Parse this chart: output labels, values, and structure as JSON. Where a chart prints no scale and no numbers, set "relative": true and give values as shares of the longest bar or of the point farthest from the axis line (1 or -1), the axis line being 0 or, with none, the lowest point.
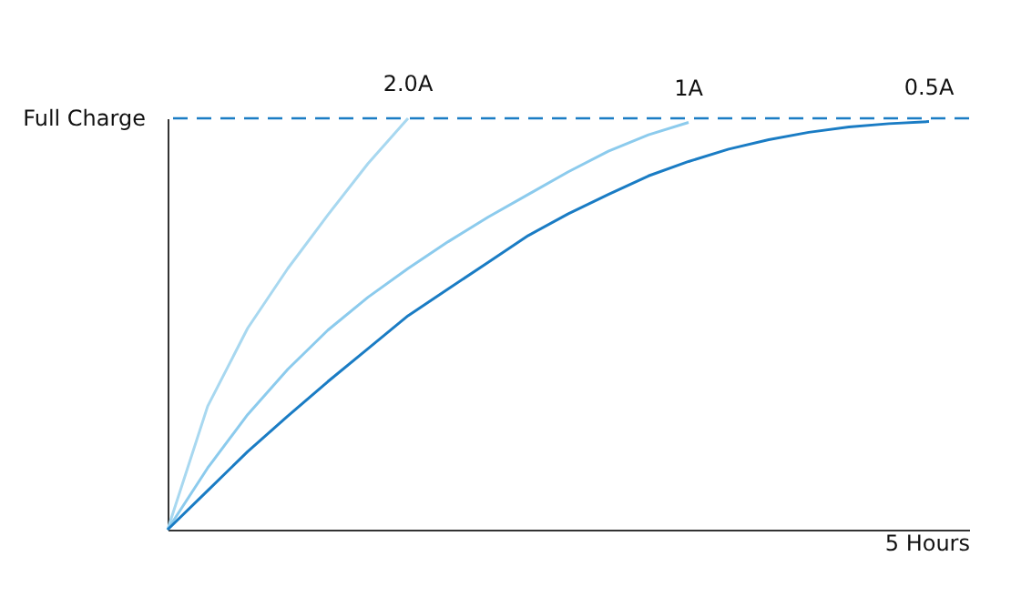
{
  "chart_data": {
    "type": "line",
    "relative": true,
    "xlabel": "5 Hours",
    "grid": false,
    "legend": false,
    "marker": "none",
    "line_style": "solid",
    "categories": [
      null,
      null,
      null,
      null,
      null,
      null,
      null,
      null,
      null,
      null,
      null,
      null,
      null,
      null,
      null,
      null,
      null,
      null,
      null,
      null,
      null
    ],
    "series": [
      {
        "name": "2.0A",
        "color": "#a8d8f0",
        "values": [
          0,
          0.3,
          0.49,
          0.635,
          0.765,
          0.89,
          1,
          null,
          null,
          null,
          null,
          null,
          null,
          null,
          null,
          null,
          null,
          null,
          null,
          null,
          null
        ]
      },
      {
        "name": "1A",
        "color": "#8ccbed",
        "values": [
          0,
          0.15,
          0.28,
          0.39,
          0.485,
          0.565,
          0.635,
          0.7,
          0.76,
          0.815,
          0.87,
          0.92,
          0.96,
          0.99,
          null,
          null,
          null,
          null,
          null,
          null,
          null
        ]
      },
      {
        "name": "0.5A",
        "color": "#1a7cc4",
        "values": [
          0,
          0.095,
          0.19,
          0.276,
          0.36,
          0.44,
          0.52,
          0.585,
          0.65,
          0.715,
          0.768,
          0.815,
          0.86,
          0.895,
          0.925,
          0.948,
          0.966,
          0.979,
          0.987,
          0.992,
          null
        ]
      }
    ],
    "ref_lines": [
      {
        "axis": "y",
        "value": 1,
        "label": "Full Charge",
        "color": "#1a7cc4",
        "line_style": "dashed"
      }
    ]
  }
}
